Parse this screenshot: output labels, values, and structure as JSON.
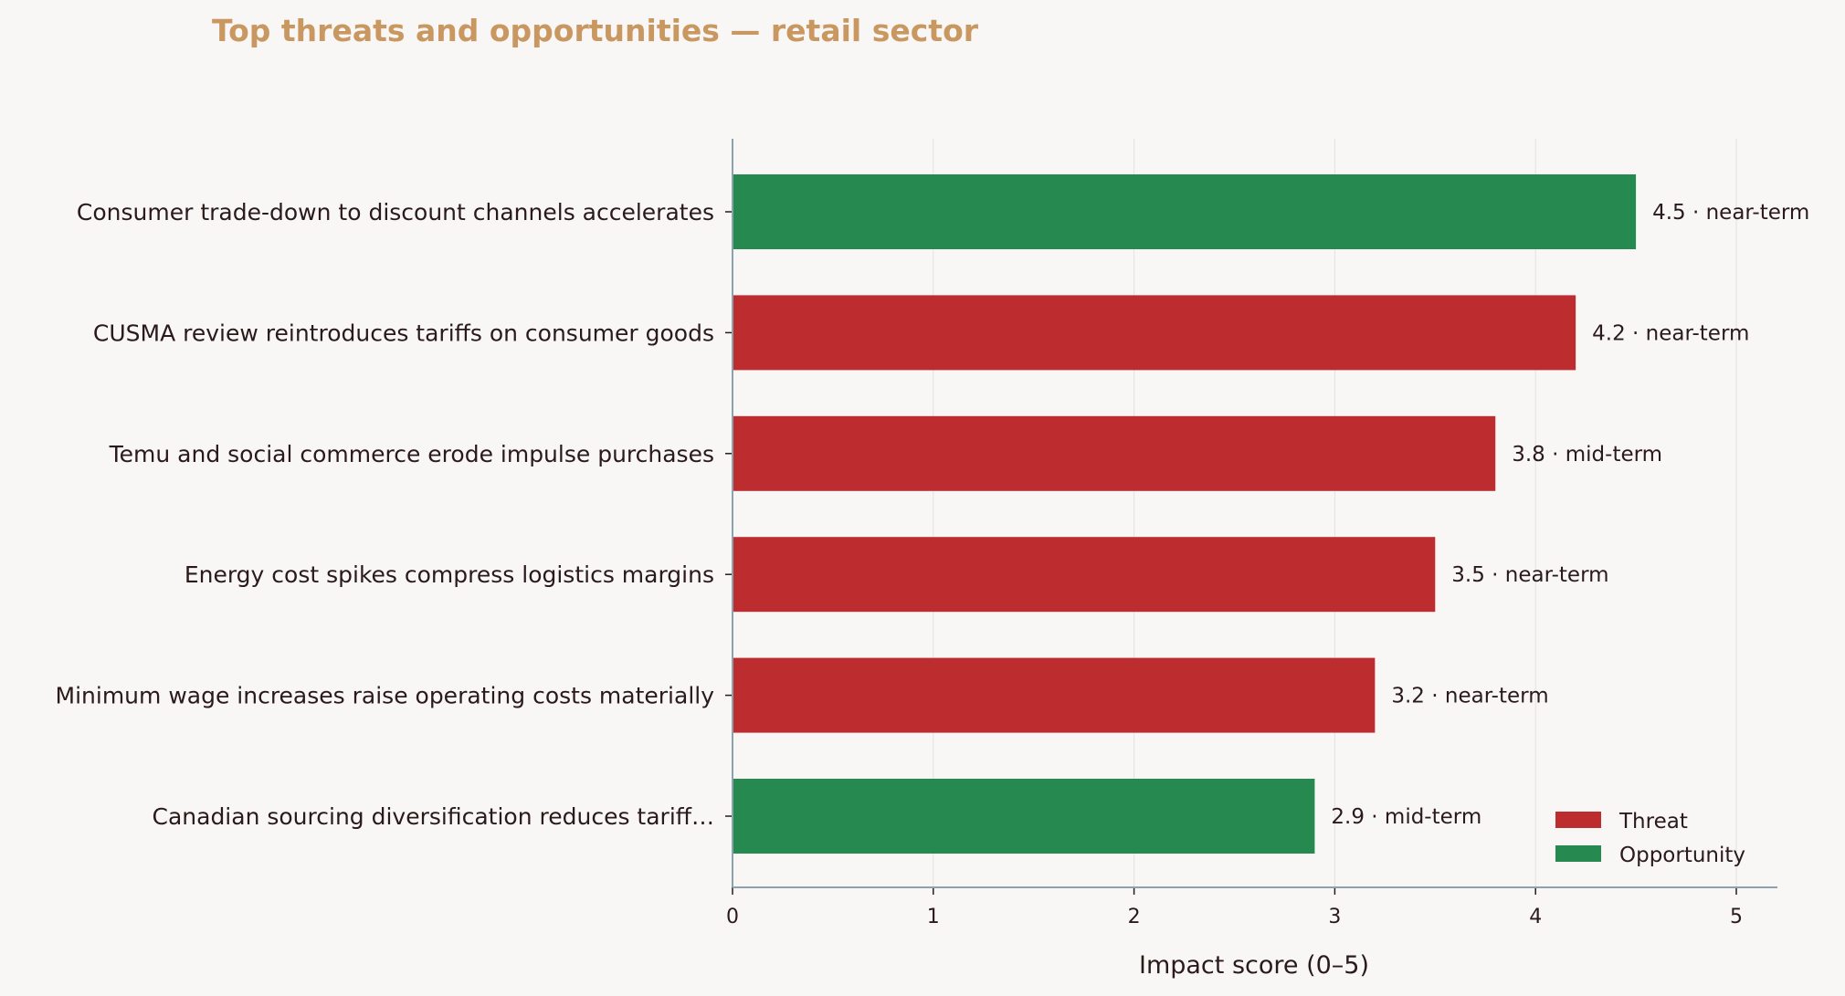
{
  "chart_data": {
    "type": "bar",
    "orientation": "horizontal",
    "title": "Top threats and opportunities — retail sector",
    "xlabel": "Impact score (0–5)",
    "ylabel": "",
    "xlim": [
      0,
      5.2
    ],
    "xticks": [
      "0",
      "1",
      "2",
      "3",
      "4",
      "5"
    ],
    "grid": "vertical",
    "legend_position": "bottom-right",
    "categories": [
      "Consumer trade-down to discount channels accelerates",
      "CUSMA review reintroduces tariffs on consumer goods",
      "Temu and social commerce erode impulse purchases",
      "Energy cost spikes compress logistics margins",
      "Minimum wage increases raise operating costs materially",
      "Canadian sourcing diversification reduces tariff…"
    ],
    "values": [
      4.5,
      4.2,
      3.8,
      3.5,
      3.2,
      2.9
    ],
    "kinds": [
      "Opportunity",
      "Threat",
      "Threat",
      "Threat",
      "Threat",
      "Opportunity"
    ],
    "data_labels": [
      "4.5  ·  near-term",
      "4.2  ·  near-term",
      "3.8  ·  mid-term",
      "3.5  ·  near-term",
      "3.2  ·  near-term",
      "2.9  ·  mid-term"
    ],
    "legend": [
      {
        "name": "Threat",
        "color": "#bd2c2e"
      },
      {
        "name": "Opportunity",
        "color": "#268a50"
      }
    ]
  },
  "colors": {
    "title": "#c99760",
    "threat": "#bd2c2e",
    "opportunity": "#268a50",
    "axis": "#8ba3ac",
    "grid": "#e4e2e0",
    "text": "#2a1a1a",
    "background": "#f9f7f6"
  }
}
